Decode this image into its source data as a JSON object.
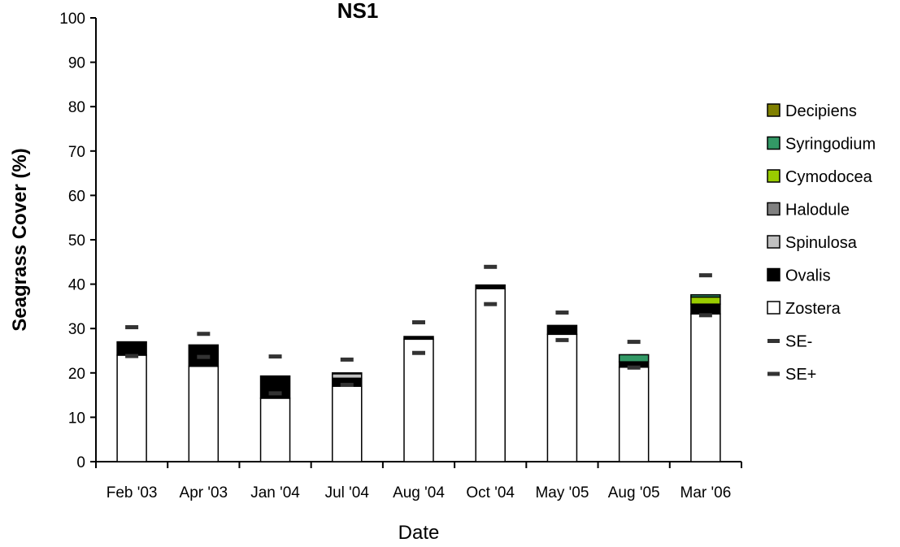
{
  "chart_data": {
    "type": "bar",
    "stacked": true,
    "title": "NS1",
    "xlabel": "Date",
    "ylabel": "Seagrass Cover (%)",
    "ylim": [
      0,
      100
    ],
    "yticks": [
      0,
      10,
      20,
      30,
      40,
      50,
      60,
      70,
      80,
      90,
      100
    ],
    "grid": false,
    "legend_position": "right",
    "categories": [
      "Feb '03",
      "Apr '03",
      "Jan '04",
      "Jul '04",
      "Aug '04",
      "Oct '04",
      "May '05",
      "Aug '05",
      "Mar '06"
    ],
    "series": [
      {
        "name": "Zostera",
        "color": "#ffffff",
        "values": [
          24.0,
          21.5,
          14.3,
          17.0,
          27.6,
          39.0,
          28.7,
          21.3,
          33.3
        ]
      },
      {
        "name": "Ovalis",
        "color": "#000000",
        "values": [
          3.0,
          4.8,
          5.0,
          1.8,
          0.6,
          0.8,
          2.0,
          1.2,
          2.2
        ]
      },
      {
        "name": "Spinulosa",
        "color": "#c0c0c0",
        "values": [
          0,
          0,
          0,
          1.0,
          0,
          0,
          0,
          0,
          0
        ]
      },
      {
        "name": "Halodule",
        "color": "#808080",
        "values": [
          0,
          0,
          0,
          0.2,
          0,
          0,
          0,
          0,
          0
        ]
      },
      {
        "name": "Cymodocea",
        "color": "#99cc00",
        "values": [
          0,
          0,
          0,
          0,
          0,
          0,
          0,
          0,
          1.6
        ]
      },
      {
        "name": "Syringodium",
        "color": "#339966",
        "values": [
          0,
          0,
          0,
          0,
          0,
          0,
          0,
          1.6,
          0.5
        ]
      },
      {
        "name": "Decipiens",
        "color": "#808000",
        "values": [
          0,
          0,
          0,
          0,
          0,
          0,
          0,
          0,
          0
        ]
      }
    ],
    "error_markers": [
      {
        "name": "SE-",
        "color": "#333333",
        "values": [
          23.8,
          23.6,
          15.4,
          17.3,
          24.5,
          35.5,
          27.4,
          21.2,
          33.0
        ]
      },
      {
        "name": "SE+",
        "color": "#333333",
        "values": [
          30.3,
          28.8,
          23.7,
          23.0,
          31.4,
          43.9,
          33.6,
          27.0,
          42.0
        ]
      }
    ],
    "legend_order": [
      "Decipiens",
      "Syringodium",
      "Cymodocea",
      "Halodule",
      "Spinulosa",
      "Ovalis",
      "Zostera",
      "SE-",
      "SE+"
    ]
  }
}
